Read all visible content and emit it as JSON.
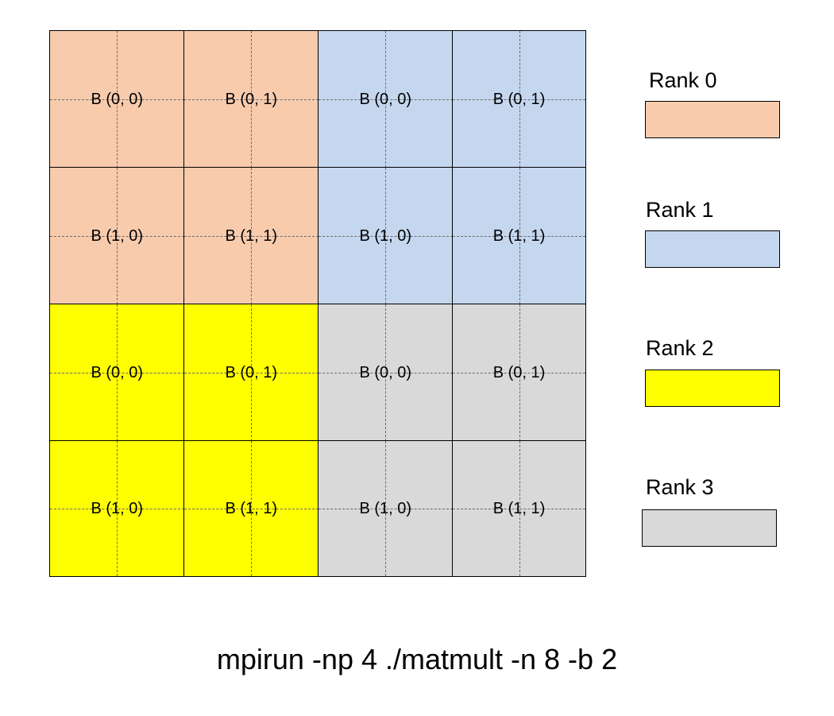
{
  "grid": {
    "rows": [
      [
        {
          "label": "B (0, 0)",
          "rank": 0
        },
        {
          "label": "B (0, 1)",
          "rank": 0
        },
        {
          "label": "B (0, 0)",
          "rank": 1
        },
        {
          "label": "B (0, 1)",
          "rank": 1
        }
      ],
      [
        {
          "label": "B (1, 0)",
          "rank": 0
        },
        {
          "label": "B (1, 1)",
          "rank": 0
        },
        {
          "label": "B (1, 0)",
          "rank": 1
        },
        {
          "label": "B (1, 1)",
          "rank": 1
        }
      ],
      [
        {
          "label": "B (0, 0)",
          "rank": 2
        },
        {
          "label": "B (0, 1)",
          "rank": 2
        },
        {
          "label": "B (0, 0)",
          "rank": 3
        },
        {
          "label": "B (0, 1)",
          "rank": 3
        }
      ],
      [
        {
          "label": "B (1, 0)",
          "rank": 2
        },
        {
          "label": "B (1, 1)",
          "rank": 2
        },
        {
          "label": "B (1, 0)",
          "rank": 3
        },
        {
          "label": "B (1, 1)",
          "rank": 3
        }
      ]
    ]
  },
  "legend": {
    "items": [
      {
        "label": "Rank 0",
        "color": "#f8cbad"
      },
      {
        "label": "Rank 1",
        "color": "#c5d7ef"
      },
      {
        "label": "Rank 2",
        "color": "#ffff00"
      },
      {
        "label": "Rank 3",
        "color": "#d9d9d9"
      }
    ]
  },
  "command": "mpirun -np 4 ./matmult -n 8 -b 2"
}
